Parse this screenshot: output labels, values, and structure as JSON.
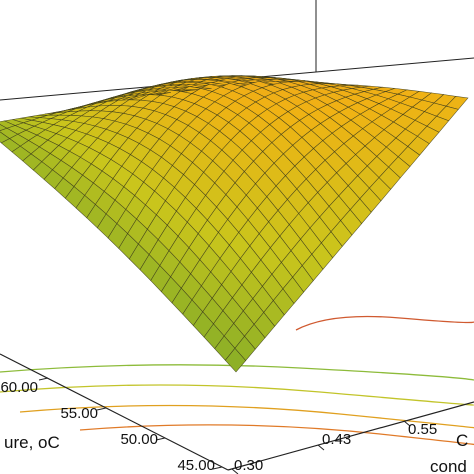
{
  "chart_data": {
    "type": "surface3d",
    "title": "",
    "x_axis": {
      "label_visible": "ure, oC",
      "ticks": [
        "45.00",
        "50.00",
        "55.00",
        "60.00"
      ],
      "range": [
        45,
        60
      ]
    },
    "y_axis": {
      "label_visible": [
        "C",
        "cond"
      ],
      "ticks": [
        "0.30",
        "0.43",
        "0.55"
      ],
      "range": [
        0.3,
        0.8
      ]
    },
    "z_axis": {
      "label_visible": "",
      "ticks": []
    },
    "surface": {
      "shape": "concave-down dome",
      "colormap": [
        "#6fa52c",
        "#c9c51c",
        "#f0b214",
        "#e88a2a"
      ],
      "grid_lines": 24
    },
    "contour_floor": {
      "levels": 5,
      "colors": [
        "#8dbb3a",
        "#c2c42a",
        "#e0a020",
        "#e07a28",
        "#d05a30"
      ]
    },
    "grid": false,
    "legend": null
  }
}
